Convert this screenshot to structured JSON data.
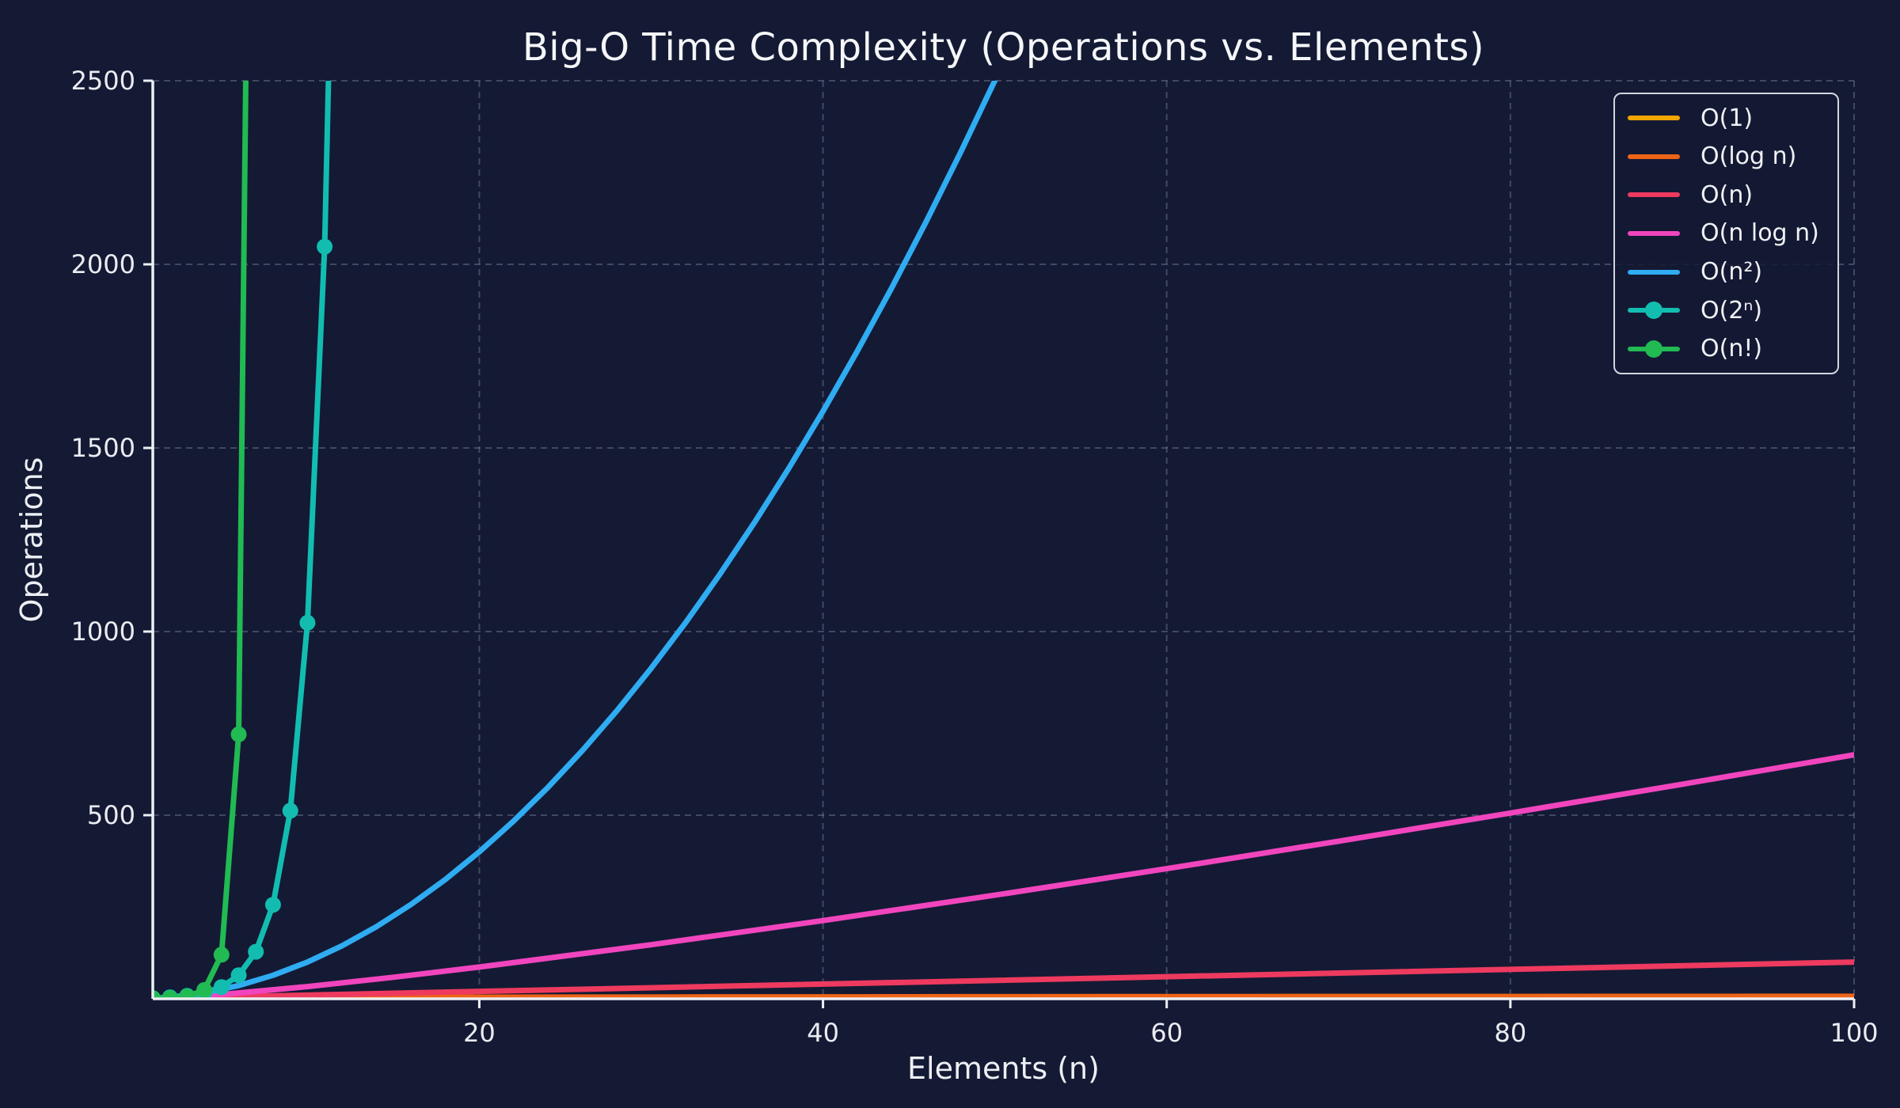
{
  "title": "Big-O Time Complexity (Operations vs. Elements)",
  "chart_data": {
    "type": "line",
    "title": "Big-O Time Complexity (Operations vs. Elements)",
    "xlabel": "Elements (n)",
    "ylabel": "Operations",
    "xlim": [
      1,
      100
    ],
    "ylim": [
      0,
      2500
    ],
    "xticks": [
      20,
      40,
      60,
      80,
      100
    ],
    "yticks": [
      500,
      1000,
      1500,
      2000,
      2500
    ],
    "grid": "dashed both axes",
    "legend_position": "upper right",
    "colors": {
      "background": "#141A34",
      "spine": "#EDEFF4",
      "tick_text": "#EAECF2",
      "grid": "#8A93AD"
    },
    "series": [
      {
        "name": "O(1)",
        "color": "#F2A602",
        "marker": false,
        "points": [
          [
            1,
            1
          ],
          [
            100,
            1
          ]
        ]
      },
      {
        "name": "O(log n)",
        "color": "#EE6416",
        "marker": false,
        "points": [
          [
            1,
            0
          ],
          [
            2,
            1
          ],
          [
            3,
            1.58
          ],
          [
            4,
            2
          ],
          [
            6,
            2.58
          ],
          [
            8,
            3
          ],
          [
            12,
            3.58
          ],
          [
            16,
            4
          ],
          [
            24,
            4.58
          ],
          [
            32,
            5
          ],
          [
            48,
            5.58
          ],
          [
            64,
            6
          ],
          [
            100,
            6.64
          ]
        ]
      },
      {
        "name": "O(n)",
        "color": "#EE3A5F",
        "marker": false,
        "points": [
          [
            1,
            1
          ],
          [
            100,
            100
          ]
        ]
      },
      {
        "name": "O(n log n)",
        "color": "#F145BE",
        "marker": false,
        "points": [
          [
            1,
            0
          ],
          [
            5,
            11.6
          ],
          [
            10,
            33.2
          ],
          [
            15,
            58.6
          ],
          [
            20,
            86.4
          ],
          [
            30,
            147.2
          ],
          [
            40,
            212.9
          ],
          [
            50,
            282.2
          ],
          [
            60,
            354.4
          ],
          [
            70,
            429.0
          ],
          [
            80,
            505.8
          ],
          [
            90,
            584.3
          ],
          [
            100,
            664.4
          ]
        ]
      },
      {
        "name": "O(n²)",
        "color": "#2FACF2",
        "marker": false,
        "points": [
          [
            1,
            1
          ],
          [
            2,
            4
          ],
          [
            4,
            16
          ],
          [
            6,
            36
          ],
          [
            8,
            64
          ],
          [
            10,
            100
          ],
          [
            12,
            144
          ],
          [
            14,
            196
          ],
          [
            16,
            256
          ],
          [
            18,
            324
          ],
          [
            20,
            400
          ],
          [
            22,
            484
          ],
          [
            24,
            576
          ],
          [
            26,
            676
          ],
          [
            28,
            784
          ],
          [
            30,
            900
          ],
          [
            32,
            1024
          ],
          [
            34,
            1156
          ],
          [
            36,
            1296
          ],
          [
            38,
            1444
          ],
          [
            40,
            1600
          ],
          [
            42,
            1764
          ],
          [
            44,
            1936
          ],
          [
            46,
            2116
          ],
          [
            48,
            2304
          ],
          [
            50,
            2500
          ],
          [
            51,
            2601
          ]
        ]
      },
      {
        "name": "O(2ⁿ)",
        "color": "#12BDB0",
        "marker": true,
        "points": [
          [
            1,
            2
          ],
          [
            2,
            4
          ],
          [
            3,
            8
          ],
          [
            4,
            16
          ],
          [
            5,
            32
          ],
          [
            6,
            64
          ],
          [
            7,
            128
          ],
          [
            8,
            256
          ],
          [
            9,
            512
          ],
          [
            10,
            1024
          ],
          [
            11,
            2048
          ],
          [
            12,
            4096
          ]
        ]
      },
      {
        "name": "O(n!)",
        "color": "#21BA53",
        "marker": true,
        "points": [
          [
            1,
            1
          ],
          [
            2,
            2
          ],
          [
            3,
            6
          ],
          [
            4,
            24
          ],
          [
            5,
            120
          ],
          [
            6,
            720
          ],
          [
            7,
            5040
          ]
        ]
      }
    ]
  }
}
